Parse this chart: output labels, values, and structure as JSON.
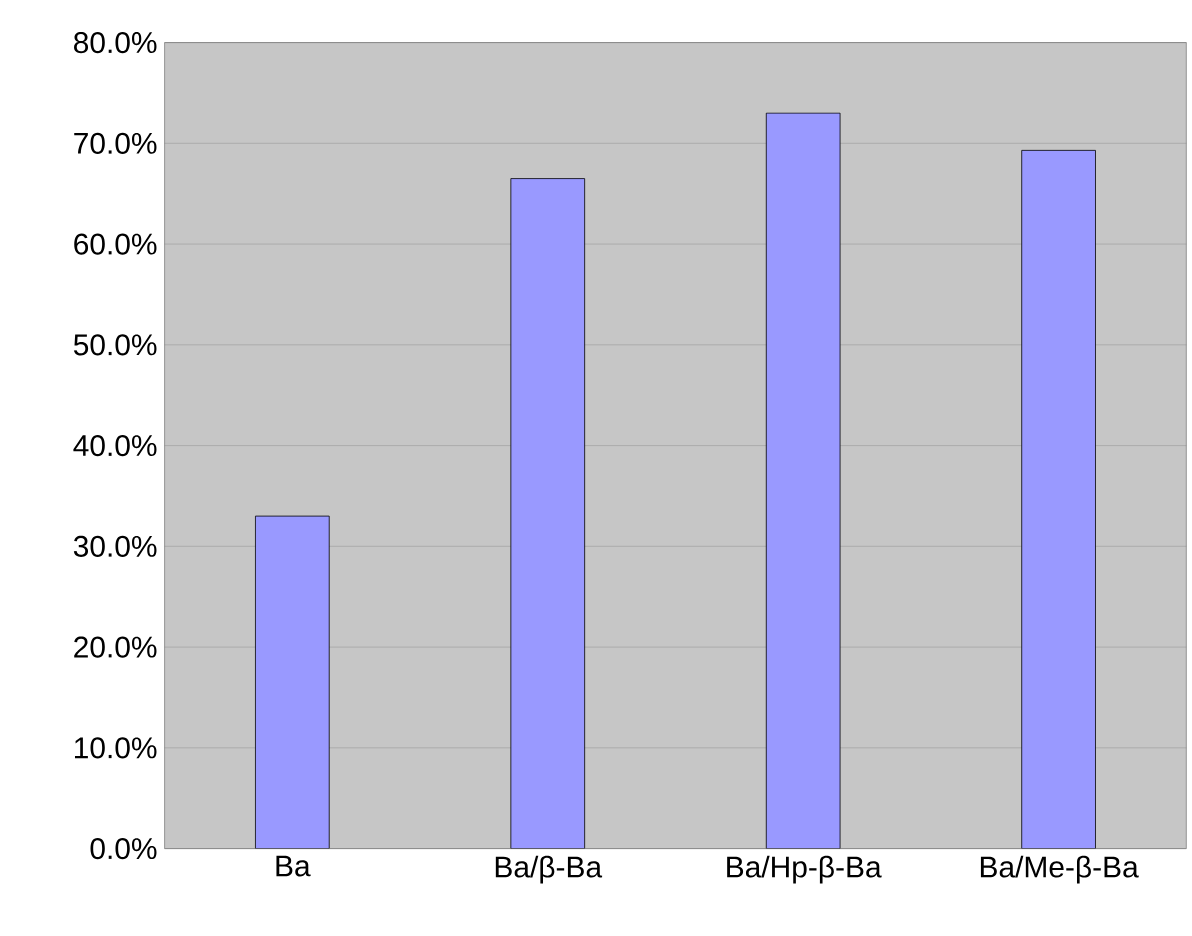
{
  "chart_data": {
    "type": "bar",
    "categories": [
      "Ba",
      "Ba/β-Ba",
      "Ba/Hp-β-Ba",
      "Ba/Me-β-Ba"
    ],
    "values": [
      33,
      66.5,
      73,
      69.3
    ],
    "color": "#9999ff",
    "ylim": [
      0,
      80
    ],
    "yticks": [
      {
        "value": 0,
        "label": "0.0%"
      },
      {
        "value": 10,
        "label": "10.0%"
      },
      {
        "value": 20,
        "label": "20.0%"
      },
      {
        "value": 30,
        "label": "30.0%"
      },
      {
        "value": 40,
        "label": "40.0%"
      },
      {
        "value": 50,
        "label": "50.0%"
      },
      {
        "value": 60,
        "label": "60.0%"
      },
      {
        "value": 70,
        "label": "70.0%"
      },
      {
        "value": 80,
        "label": "80.0%"
      }
    ],
    "grid": "y"
  }
}
